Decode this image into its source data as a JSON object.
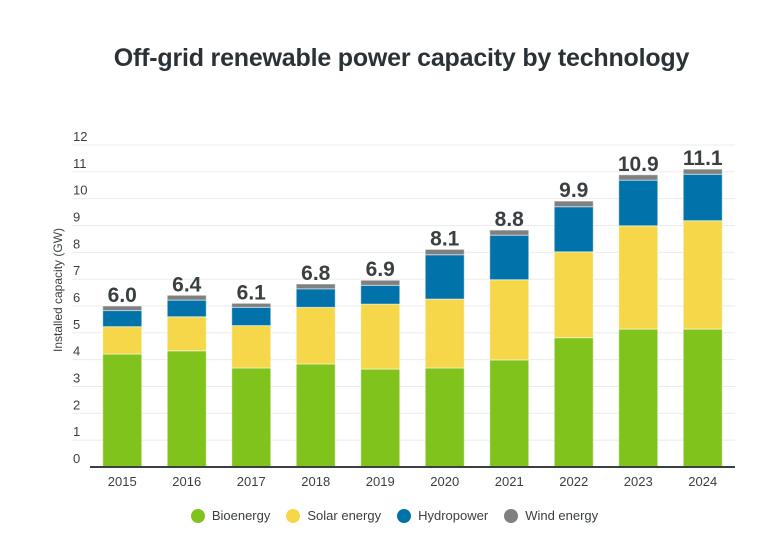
{
  "chart_data": {
    "type": "bar",
    "stacked": true,
    "title": "Off-grid renewable power capacity by technology",
    "xlabel": "",
    "ylabel": "Installed capacity (GW)",
    "ylim": [
      0,
      12
    ],
    "yticks": [
      "0",
      "1",
      "2",
      "3",
      "4",
      "5",
      "6",
      "7",
      "8",
      "9",
      "10",
      "11",
      "12"
    ],
    "grid": true,
    "legend_position": "bottom-center",
    "categories": [
      "2015",
      "2016",
      "2017",
      "2018",
      "2019",
      "2020",
      "2021",
      "2022",
      "2023",
      "2024"
    ],
    "series": [
      {
        "name": "Bioenergy",
        "color": "#80c31c",
        "values": [
          4.21,
          4.33,
          3.69,
          3.84,
          3.65,
          3.69,
          3.99,
          4.82,
          5.14,
          5.14
        ]
      },
      {
        "name": "Solar energy",
        "color": "#f6d74a",
        "values": [
          1.02,
          1.27,
          1.58,
          2.11,
          2.42,
          2.57,
          2.99,
          3.2,
          3.85,
          4.04
        ]
      },
      {
        "name": "Hydropower",
        "color": "#0173aa",
        "values": [
          0.6,
          0.62,
          0.68,
          0.69,
          0.7,
          1.65,
          1.66,
          1.68,
          1.7,
          1.73
        ]
      },
      {
        "name": "Wind energy",
        "color": "#808080",
        "values": [
          0.17,
          0.18,
          0.15,
          0.18,
          0.19,
          0.2,
          0.19,
          0.21,
          0.2,
          0.19
        ]
      }
    ],
    "totals": [
      "6.0",
      "6.4",
      "6.1",
      "6.8",
      "6.9",
      "8.1",
      "8.8",
      "9.9",
      "10.9",
      "11.1"
    ]
  }
}
